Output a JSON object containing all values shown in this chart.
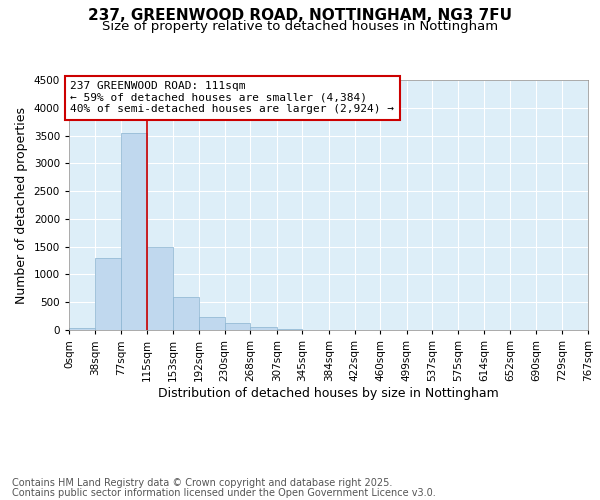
{
  "title_line1": "237, GREENWOOD ROAD, NOTTINGHAM, NG3 7FU",
  "title_line2": "Size of property relative to detached houses in Nottingham",
  "xlabel": "Distribution of detached houses by size in Nottingham",
  "ylabel": "Number of detached properties",
  "background_color": "#ddeef8",
  "bar_color": "#c0d8ee",
  "bar_edge_color": "#8ab4d0",
  "vline_color": "#cc0000",
  "vline_x": 115,
  "annotation_text": "237 GREENWOOD ROAD: 111sqm\n← 59% of detached houses are smaller (4,384)\n40% of semi-detached houses are larger (2,924) →",
  "annotation_box_color": "#cc0000",
  "bin_edges": [
    0,
    38,
    77,
    115,
    153,
    192,
    230,
    268,
    307,
    345,
    384,
    422,
    460,
    499,
    537,
    575,
    614,
    652,
    690,
    729,
    767
  ],
  "bin_labels": [
    "0sqm",
    "38sqm",
    "77sqm",
    "115sqm",
    "153sqm",
    "192sqm",
    "230sqm",
    "268sqm",
    "307sqm",
    "345sqm",
    "384sqm",
    "422sqm",
    "460sqm",
    "499sqm",
    "537sqm",
    "575sqm",
    "614sqm",
    "652sqm",
    "690sqm",
    "729sqm",
    "767sqm"
  ],
  "bar_heights": [
    30,
    1300,
    3540,
    1500,
    600,
    240,
    130,
    60,
    20,
    5,
    5,
    5,
    2,
    2,
    2,
    2,
    2,
    2,
    2,
    2
  ],
  "ylim": [
    0,
    4500
  ],
  "yticks": [
    0,
    500,
    1000,
    1500,
    2000,
    2500,
    3000,
    3500,
    4000,
    4500
  ],
  "footer_line1": "Contains HM Land Registry data © Crown copyright and database right 2025.",
  "footer_line2": "Contains public sector information licensed under the Open Government Licence v3.0.",
  "title_fontsize": 11,
  "subtitle_fontsize": 9.5,
  "axis_label_fontsize": 9,
  "tick_fontsize": 7.5,
  "annotation_fontsize": 8,
  "footer_fontsize": 7
}
